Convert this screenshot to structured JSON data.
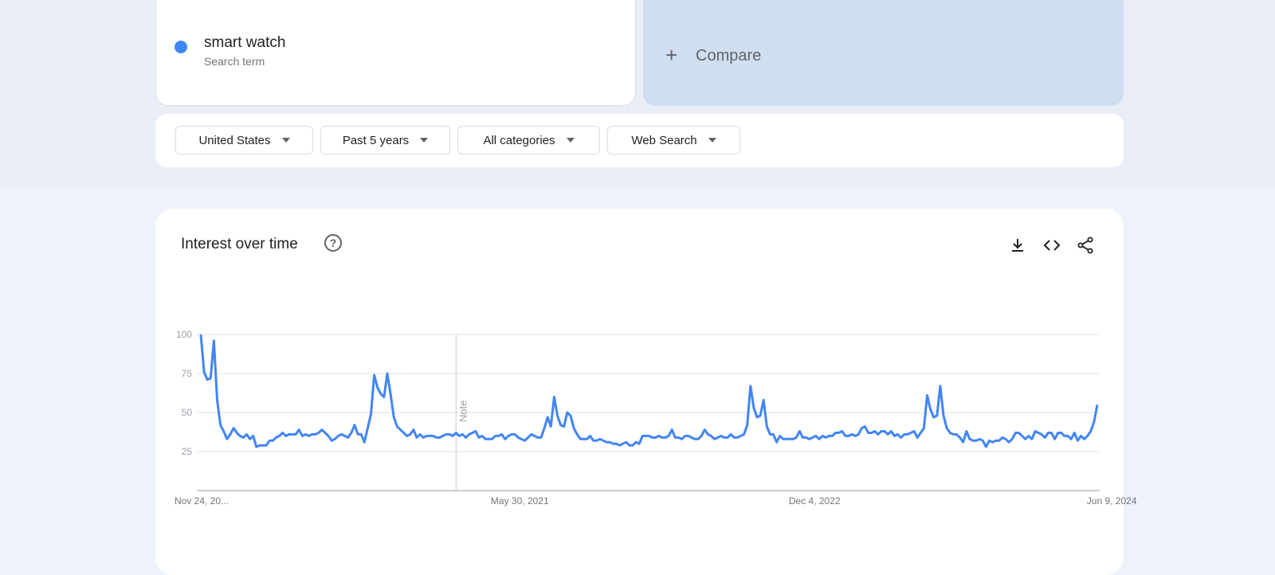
{
  "search_term": {
    "name": "smart watch",
    "type_label": "Search term",
    "color": "#4285f4"
  },
  "compare": {
    "label": "Compare",
    "icon": "plus-icon"
  },
  "filters": [
    {
      "label": "United States"
    },
    {
      "label": "Past 5 years"
    },
    {
      "label": "All categories"
    },
    {
      "label": "Web Search"
    }
  ],
  "interest_panel": {
    "title": "Interest over time",
    "icons": [
      "help-icon",
      "download-icon",
      "embed-code-icon",
      "share-icon"
    ],
    "note_label": "Note"
  },
  "chart_data": {
    "type": "line",
    "title": "Interest over time",
    "xlabel": "",
    "ylabel": "",
    "ylim": [
      0,
      100
    ],
    "y_ticks": [
      25,
      50,
      75,
      100
    ],
    "grid": true,
    "x_tick_labels": [
      "Nov 24, 20...",
      "May 30, 2021",
      "Dec 4, 2022",
      "Jun 9, 2024"
    ],
    "note_at_index": 78,
    "series": [
      {
        "name": "smart watch",
        "color": "#4285f4",
        "values": [
          100,
          76,
          71,
          72,
          96,
          58,
          42,
          38,
          33,
          36,
          40,
          37,
          35,
          34,
          36,
          33,
          35,
          28,
          29,
          29,
          29,
          32,
          32,
          34,
          35,
          37,
          35,
          36,
          36,
          36,
          39,
          35,
          36,
          35,
          36,
          36,
          37,
          39,
          37,
          35,
          32,
          33,
          35,
          36,
          35,
          34,
          37,
          42,
          36,
          36,
          31,
          40,
          49,
          74,
          66,
          62,
          60,
          75,
          62,
          47,
          41,
          39,
          37,
          35,
          36,
          39,
          34,
          36,
          34,
          35,
          35,
          35,
          34,
          34,
          35,
          36,
          36,
          35,
          37,
          35,
          36,
          34,
          36,
          37,
          38,
          34,
          35,
          33,
          33,
          33,
          35,
          35,
          36,
          33,
          35,
          36,
          36,
          34,
          33,
          32,
          34,
          36,
          35,
          34,
          34,
          40,
          47,
          41,
          60,
          48,
          42,
          41,
          50,
          48,
          40,
          36,
          33,
          33,
          33,
          35,
          32,
          32,
          33,
          32,
          31,
          31,
          30,
          30,
          29,
          30,
          31,
          29,
          29,
          31,
          30,
          35,
          35,
          35,
          34,
          34,
          35,
          34,
          34,
          35,
          39,
          34,
          34,
          33,
          35,
          35,
          34,
          33,
          33,
          35,
          39,
          36,
          35,
          33,
          34,
          35,
          34,
          34,
          36,
          34,
          34,
          35,
          36,
          42,
          67,
          53,
          47,
          48,
          58,
          41,
          36,
          36,
          31,
          35,
          33,
          33,
          33,
          33,
          34,
          38,
          34,
          34,
          33,
          34,
          35,
          33,
          35,
          34,
          35,
          35,
          37,
          37,
          38,
          35,
          35,
          36,
          35,
          36,
          40,
          41,
          37,
          37,
          38,
          36,
          38,
          38,
          36,
          38,
          35,
          36,
          34,
          36,
          36,
          37,
          38,
          34,
          37,
          40,
          61,
          52,
          47,
          48,
          67,
          48,
          40,
          37,
          36,
          36,
          34,
          31,
          38,
          33,
          32,
          32,
          33,
          32,
          28,
          32,
          31,
          32,
          32,
          34,
          33,
          31,
          33,
          37,
          37,
          35,
          33,
          35,
          33,
          38,
          37,
          36,
          34,
          37,
          37,
          33,
          37,
          37,
          35,
          35,
          33,
          37,
          32,
          35,
          33,
          35,
          38,
          44,
          55
        ]
      }
    ]
  }
}
